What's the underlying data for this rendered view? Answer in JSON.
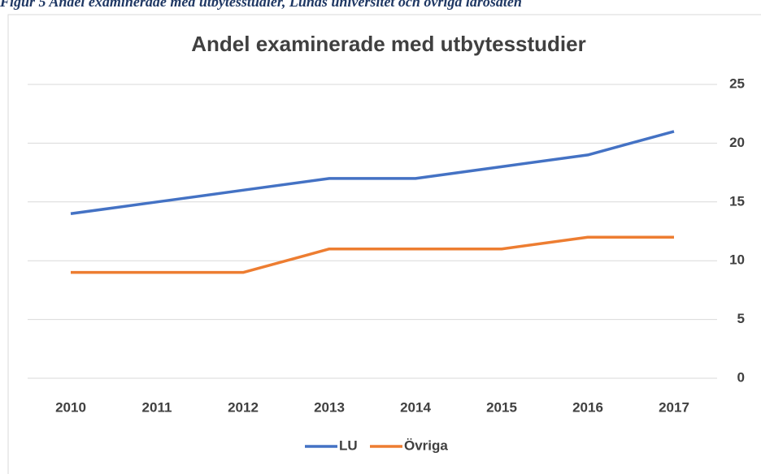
{
  "caption": "Figur 5 Andel examinerade med utbytesstudier, Lunds universitet och övriga lärosäten",
  "chart_data": {
    "type": "line",
    "title": "Andel examinerade med utbytesstudier",
    "categories": [
      "2010",
      "2011",
      "2012",
      "2013",
      "2014",
      "2015",
      "2016",
      "2017"
    ],
    "series": [
      {
        "name": "LU",
        "color": "#4472c4",
        "values": [
          14,
          15,
          16,
          17,
          17,
          18,
          19,
          21
        ]
      },
      {
        "name": "Övriga",
        "color": "#ed7d31",
        "values": [
          9,
          9,
          9,
          11,
          11,
          11,
          12,
          12
        ]
      }
    ],
    "ylim": [
      0,
      25
    ],
    "yticks": [
      0,
      5,
      10,
      15,
      20,
      25
    ],
    "grid": true,
    "legend": "bottom"
  }
}
